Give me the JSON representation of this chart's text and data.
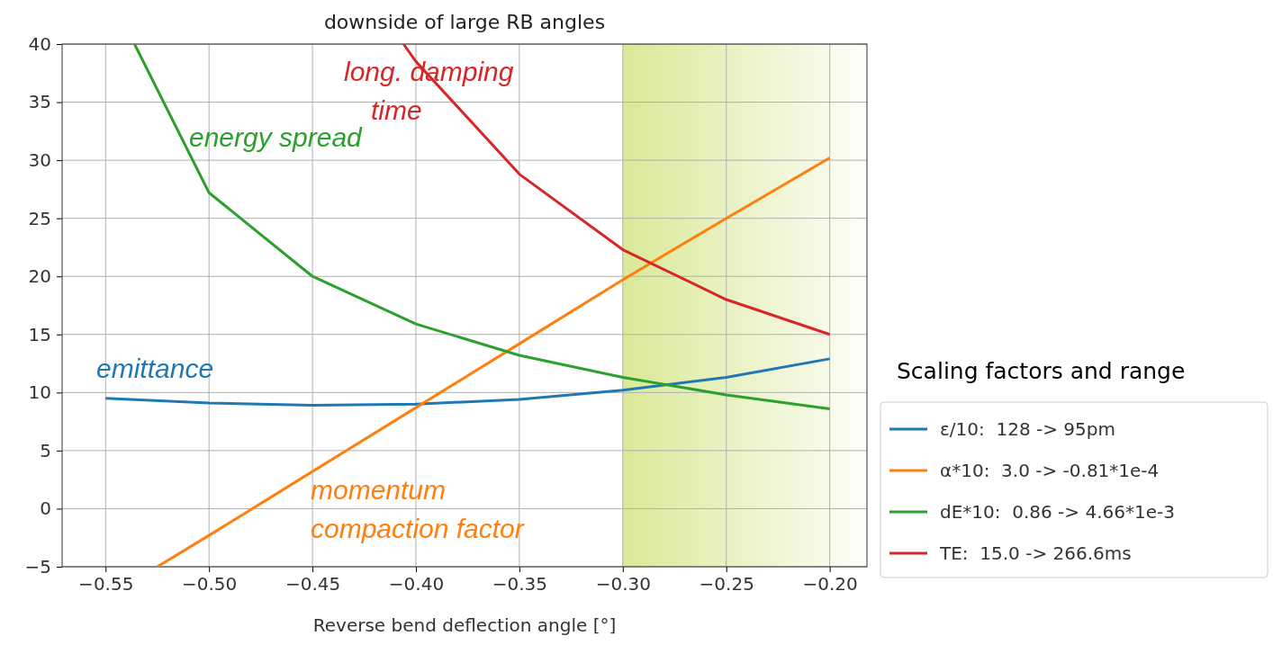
{
  "chart_data": {
    "type": "line",
    "title": "downside of large RB angles",
    "xlabel": "Reverse bend deflection angle [°]",
    "legend_title": "Scaling factors and range",
    "x": [
      -0.55,
      -0.5,
      -0.45,
      -0.4,
      -0.35,
      -0.3,
      -0.25,
      -0.2
    ],
    "series": [
      {
        "name": "ε/10:  128 -> 95pm",
        "color": "#1f77b4",
        "values": [
          9.5,
          9.1,
          8.9,
          9.0,
          9.4,
          10.2,
          11.3,
          12.9
        ]
      },
      {
        "name": "α*10:  3.0 -> -0.81*1e-4",
        "color": "#ff7f0e",
        "x": [
          -0.525,
          -0.5,
          -0.45,
          -0.4,
          -0.35,
          -0.3,
          -0.25,
          -0.2
        ],
        "values": [
          -5,
          -2.3,
          3.2,
          8.7,
          14.2,
          19.7,
          25.0,
          30.2
        ]
      },
      {
        "name": "dE*10:  0.86 -> 4.66*1e-3",
        "color": "#2ca02c",
        "x": [
          -0.536,
          -0.5,
          -0.45,
          -0.4,
          -0.35,
          -0.3,
          -0.25,
          -0.2
        ],
        "values": [
          40,
          27.2,
          20.0,
          15.9,
          13.2,
          11.3,
          9.8,
          8.6
        ]
      },
      {
        "name": "TE:  15.0 -> 266.6ms",
        "color": "#d62728",
        "x": [
          -0.406,
          -0.4,
          -0.35,
          -0.3,
          -0.25,
          -0.2
        ],
        "values": [
          40,
          38.5,
          28.8,
          22.3,
          18.0,
          15.0
        ]
      }
    ],
    "annotations": [
      "emittance",
      "momentum compaction factor",
      "energy spread",
      "long. damping time"
    ],
    "bands": [
      {
        "axis": "x",
        "from": -0.3,
        "to": -0.182,
        "color": "#d6e68c"
      }
    ],
    "xlim": [
      -0.571,
      -0.182
    ],
    "ylim": [
      -5,
      40
    ],
    "xticks": [
      {
        "value": -0.55,
        "label": "−0.55"
      },
      {
        "value": -0.5,
        "label": "−0.50"
      },
      {
        "value": -0.45,
        "label": "−0.45"
      },
      {
        "value": -0.4,
        "label": "−0.40"
      },
      {
        "value": -0.35,
        "label": "−0.35"
      },
      {
        "value": -0.3,
        "label": "−0.30"
      },
      {
        "value": -0.25,
        "label": "−0.25"
      },
      {
        "value": -0.2,
        "label": "−0.20"
      }
    ],
    "yticks": [
      {
        "value": -5,
        "label": "−5"
      },
      0,
      5,
      10,
      15,
      20,
      25,
      30,
      35,
      40
    ],
    "grid": true,
    "legend": "right",
    "marker": "none",
    "line_style": "solid"
  }
}
